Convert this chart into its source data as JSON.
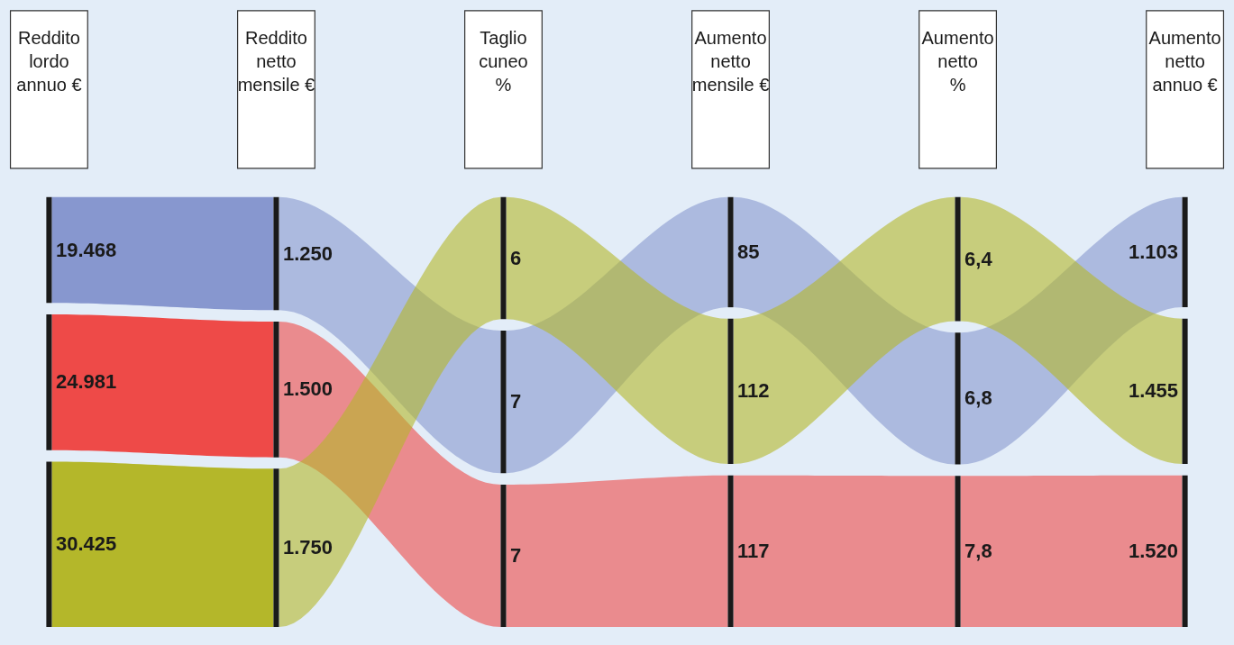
{
  "chart_data": {
    "type": "other",
    "categories": [
      "Reddito\nlordo\nannuo €",
      "Reddito\nnetto\nmensile €",
      "Taglio\ncuneo\n%",
      "Aumento\nnetto\nmensile €",
      "Aumento\nnetto\n%",
      "Aumento\nnetto\nannuo €"
    ],
    "series": [
      {
        "color": "#8797cf",
        "values": [
          19468,
          1250,
          7,
          85,
          6.8,
          1103
        ],
        "value_labels": [
          "19.468",
          "1.250",
          "7",
          "85",
          "6,8",
          "1.103"
        ]
      },
      {
        "color": "#ee4a48",
        "values": [
          24981,
          1500,
          7,
          117,
          7.8,
          1520
        ],
        "value_labels": [
          "24.981",
          "1.500",
          "7",
          "117",
          "7,8",
          "1.520"
        ]
      },
      {
        "color": "#b4b72a",
        "values": [
          30425,
          1750,
          6,
          112,
          6.4,
          1455
        ],
        "value_labels": [
          "30.425",
          "1.750",
          "6",
          "112",
          "6,4",
          "1.455"
        ]
      }
    ]
  }
}
